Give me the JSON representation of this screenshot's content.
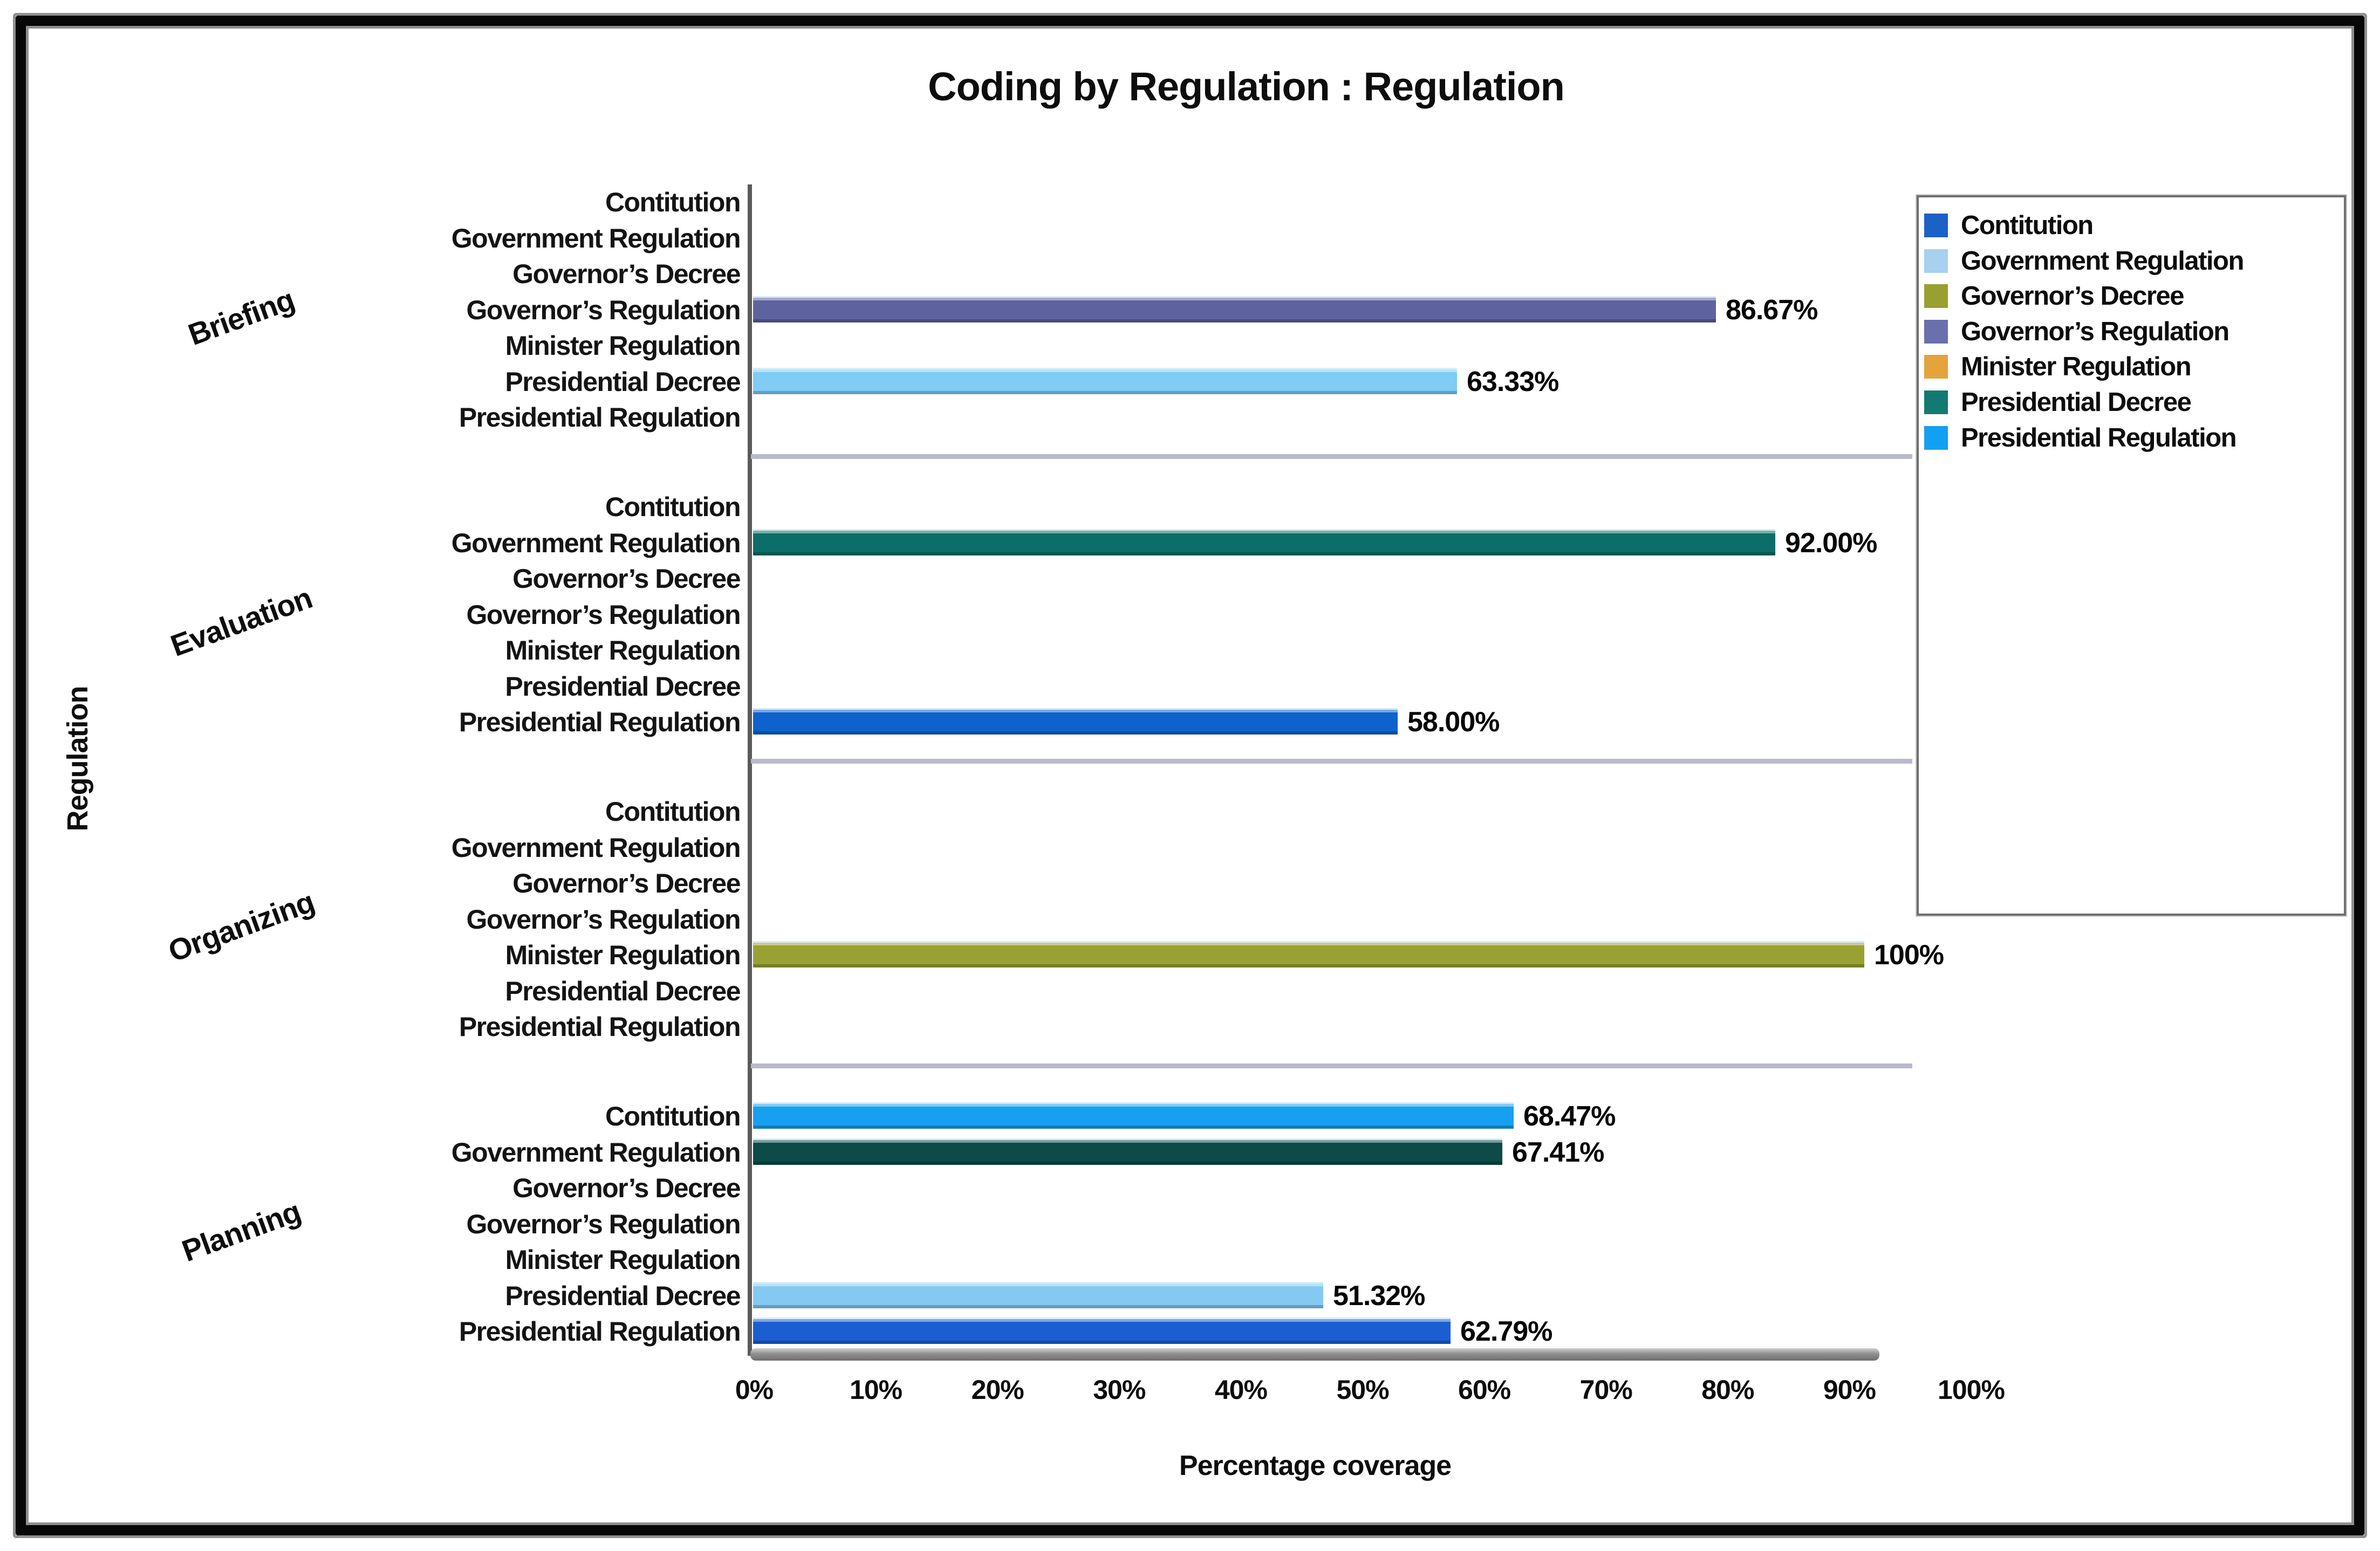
{
  "chart_data": {
    "type": "bar",
    "orientation": "horizontal",
    "title": "Coding by Regulation : Regulation",
    "xlabel": "Percentage coverage",
    "ylabel": "Regulation",
    "xlim": [
      0,
      100
    ],
    "x_ticks": [
      "0%",
      "10%",
      "20%",
      "30%",
      "40%",
      "50%",
      "60%",
      "70%",
      "80%",
      "90%",
      "100%"
    ],
    "grid": false,
    "legend_position": "right-top",
    "legend": [
      {
        "label": "Contitution",
        "color": "#1b61c6"
      },
      {
        "label": "Government Regulation",
        "color": "#a6d1f0"
      },
      {
        "label": "Governor’s Decree",
        "color": "#99a02f"
      },
      {
        "label": "Governor’s Regulation",
        "color": "#6a6fae"
      },
      {
        "label": "Minister Regulation",
        "color": "#e4a33b"
      },
      {
        "label": "Presidential Decree",
        "color": "#137a72"
      },
      {
        "label": "Presidential Regulation",
        "color": "#14a0f2"
      }
    ],
    "groups": [
      {
        "label": "Briefing",
        "bars": [
          {
            "category": "Contitution",
            "value": null,
            "display": "",
            "color": null
          },
          {
            "category": "Government Regulation",
            "value": null,
            "display": "",
            "color": null
          },
          {
            "category": "Governor’s Decree",
            "value": null,
            "display": "",
            "color": null
          },
          {
            "category": "Governor’s Regulation",
            "value": 86.67,
            "display": "86.67%",
            "color": "#5e629e"
          },
          {
            "category": "Minister Regulation",
            "value": null,
            "display": "",
            "color": null
          },
          {
            "category": "Presidential Decree",
            "value": 63.33,
            "display": "63.33%",
            "color": "#7fccf5"
          },
          {
            "category": "Presidential Regulation",
            "value": null,
            "display": "",
            "color": null
          }
        ]
      },
      {
        "label": "Evaluation",
        "bars": [
          {
            "category": "Contitution",
            "value": null,
            "display": "",
            "color": null
          },
          {
            "category": "Government Regulation",
            "value": 92.0,
            "display": "92.00%",
            "color": "#0c6e68"
          },
          {
            "category": "Governor’s Decree",
            "value": null,
            "display": "",
            "color": null
          },
          {
            "category": "Governor’s Regulation",
            "value": null,
            "display": "",
            "color": null
          },
          {
            "category": "Minister Regulation",
            "value": null,
            "display": "",
            "color": null
          },
          {
            "category": "Presidential Decree",
            "value": null,
            "display": "",
            "color": null
          },
          {
            "category": "Presidential Regulation",
            "value": 58.0,
            "display": "58.00%",
            "color": "#0d62cd"
          }
        ]
      },
      {
        "label": "Organizing",
        "bars": [
          {
            "category": "Contitution",
            "value": null,
            "display": "",
            "color": null
          },
          {
            "category": "Government Regulation",
            "value": null,
            "display": "",
            "color": null
          },
          {
            "category": "Governor’s Decree",
            "value": null,
            "display": "",
            "color": null
          },
          {
            "category": "Governor’s Regulation",
            "value": null,
            "display": "",
            "color": null
          },
          {
            "category": "Minister Regulation",
            "value": 100,
            "display": "100%",
            "color": "#9aa133"
          },
          {
            "category": "Presidential Decree",
            "value": null,
            "display": "",
            "color": null
          },
          {
            "category": "Presidential Regulation",
            "value": null,
            "display": "",
            "color": null
          }
        ]
      },
      {
        "label": "Planning",
        "bars": [
          {
            "category": "Contitution",
            "value": 68.47,
            "display": "68.47%",
            "color": "#17a0f0"
          },
          {
            "category": "Government Regulation",
            "value": 67.41,
            "display": "67.41%",
            "color": "#0c4b47"
          },
          {
            "category": "Governor’s Decree",
            "value": null,
            "display": "",
            "color": null
          },
          {
            "category": "Governor’s Regulation",
            "value": null,
            "display": "",
            "color": null
          },
          {
            "category": "Minister Regulation",
            "value": null,
            "display": "",
            "color": null
          },
          {
            "category": "Presidential Decree",
            "value": 51.32,
            "display": "51.32%",
            "color": "#84c9f2"
          },
          {
            "category": "Presidential Regulation",
            "value": 62.79,
            "display": "62.79%",
            "color": "#1b5ed2"
          }
        ]
      }
    ]
  }
}
